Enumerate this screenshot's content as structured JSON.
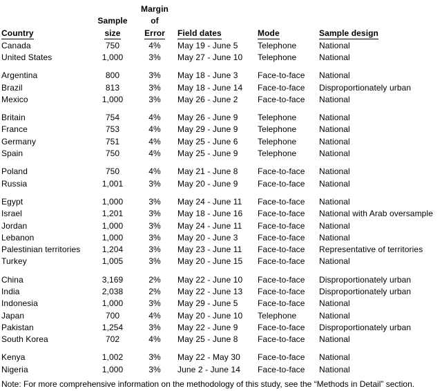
{
  "table": {
    "headers": {
      "country": "Country",
      "sample_size_line1": "Sample",
      "sample_size_line2": "size",
      "margin_line1": "Margin",
      "margin_line2": "of",
      "margin_line3": "Error",
      "field_dates": "Field dates",
      "mode": "Mode",
      "sample_design": "Sample design"
    },
    "groups": [
      {
        "rows": [
          {
            "country": "Canada",
            "sample_size": "750",
            "margin_of_error": "4%",
            "field_dates": "May 19 - June 5",
            "mode": "Telephone",
            "sample_design": "National"
          },
          {
            "country": "United States",
            "sample_size": "1,000",
            "margin_of_error": "3%",
            "field_dates": "May 27 - June 10",
            "mode": "Telephone",
            "sample_design": "National"
          }
        ]
      },
      {
        "rows": [
          {
            "country": "Argentina",
            "sample_size": "800",
            "margin_of_error": "3%",
            "field_dates": "May 18 - June 3",
            "mode": "Face-to-face",
            "sample_design": "National"
          },
          {
            "country": "Brazil",
            "sample_size": "813",
            "margin_of_error": "3%",
            "field_dates": "May 18 - June 14",
            "mode": "Face-to-face",
            "sample_design": "Disproportionately urban"
          },
          {
            "country": "Mexico",
            "sample_size": "1,000",
            "margin_of_error": "3%",
            "field_dates": "May 26 - June 2",
            "mode": "Face-to-face",
            "sample_design": "National"
          }
        ]
      },
      {
        "rows": [
          {
            "country": "Britain",
            "sample_size": "754",
            "margin_of_error": "4%",
            "field_dates": "May 26 - June 9",
            "mode": "Telephone",
            "sample_design": "National"
          },
          {
            "country": "France",
            "sample_size": "753",
            "margin_of_error": "4%",
            "field_dates": "May 29 - June 9",
            "mode": "Telephone",
            "sample_design": "National"
          },
          {
            "country": "Germany",
            "sample_size": "751",
            "margin_of_error": "4%",
            "field_dates": "May 25 - June 6",
            "mode": "Telephone",
            "sample_design": "National"
          },
          {
            "country": "Spain",
            "sample_size": "750",
            "margin_of_error": "4%",
            "field_dates": "May 25 - June 9",
            "mode": "Telephone",
            "sample_design": "National"
          }
        ]
      },
      {
        "rows": [
          {
            "country": "Poland",
            "sample_size": "750",
            "margin_of_error": "4%",
            "field_dates": "May 21 - June 8",
            "mode": "Face-to-face",
            "sample_design": "National"
          },
          {
            "country": "Russia",
            "sample_size": "1,001",
            "margin_of_error": "3%",
            "field_dates": "May 20 - June 9",
            "mode": "Face-to-face",
            "sample_design": "National"
          }
        ]
      },
      {
        "rows": [
          {
            "country": "Egypt",
            "sample_size": "1,000",
            "margin_of_error": "3%",
            "field_dates": "May 24 - June 11",
            "mode": "Face-to-face",
            "sample_design": "National"
          },
          {
            "country": "Israel",
            "sample_size": "1,201",
            "margin_of_error": "3%",
            "field_dates": "May 18 - June 16",
            "mode": "Face-to-face",
            "sample_design": "National with Arab oversample"
          },
          {
            "country": "Jordan",
            "sample_size": "1,000",
            "margin_of_error": "3%",
            "field_dates": "May 24 - June 11",
            "mode": "Face-to-face",
            "sample_design": "National"
          },
          {
            "country": "Lebanon",
            "sample_size": "1,000",
            "margin_of_error": "3%",
            "field_dates": "May 20 - June 3",
            "mode": "Face-to-face",
            "sample_design": "National"
          },
          {
            "country": "Palestinian territories",
            "sample_size": "1,204",
            "margin_of_error": "3%",
            "field_dates": "May 23 - June 11",
            "mode": "Face-to-face",
            "sample_design": "Representative of territories"
          },
          {
            "country": "Turkey",
            "sample_size": "1,005",
            "margin_of_error": "3%",
            "field_dates": "May 20 - June 15",
            "mode": "Face-to-face",
            "sample_design": "National"
          }
        ]
      },
      {
        "rows": [
          {
            "country": "China",
            "sample_size": "3,169",
            "margin_of_error": "2%",
            "field_dates": "May 22 - June 10",
            "mode": "Face-to-face",
            "sample_design": "Disproportionately urban"
          },
          {
            "country": "India",
            "sample_size": "2,038",
            "margin_of_error": "2%",
            "field_dates": "May 22 - June 13",
            "mode": "Face-to-face",
            "sample_design": "Disproportionately urban"
          },
          {
            "country": "Indonesia",
            "sample_size": "1,000",
            "margin_of_error": "3%",
            "field_dates": "May 29 - June 5",
            "mode": "Face-to-face",
            "sample_design": "National"
          },
          {
            "country": "Japan",
            "sample_size": "700",
            "margin_of_error": "4%",
            "field_dates": "May 20 - June 10",
            "mode": "Telephone",
            "sample_design": "National"
          },
          {
            "country": "Pakistan",
            "sample_size": "1,254",
            "margin_of_error": "3%",
            "field_dates": "May 22 - June 9",
            "mode": "Face-to-face",
            "sample_design": "Disproportionately urban"
          },
          {
            "country": "South Korea",
            "sample_size": "702",
            "margin_of_error": "4%",
            "field_dates": "May 25 - June 8",
            "mode": "Face-to-face",
            "sample_design": "National"
          }
        ]
      },
      {
        "rows": [
          {
            "country": "Kenya",
            "sample_size": "1,002",
            "margin_of_error": "3%",
            "field_dates": "May 22 - May 30",
            "mode": "Face-to-face",
            "sample_design": "National"
          },
          {
            "country": "Nigeria",
            "sample_size": "1,000",
            "margin_of_error": "3%",
            "field_dates": "June 2 - June 14",
            "mode": "Face-to-face",
            "sample_design": "National"
          }
        ]
      }
    ]
  },
  "note": "Note: For more comprehensive information on the methodology of this study, see the “Methods in Detail” section."
}
